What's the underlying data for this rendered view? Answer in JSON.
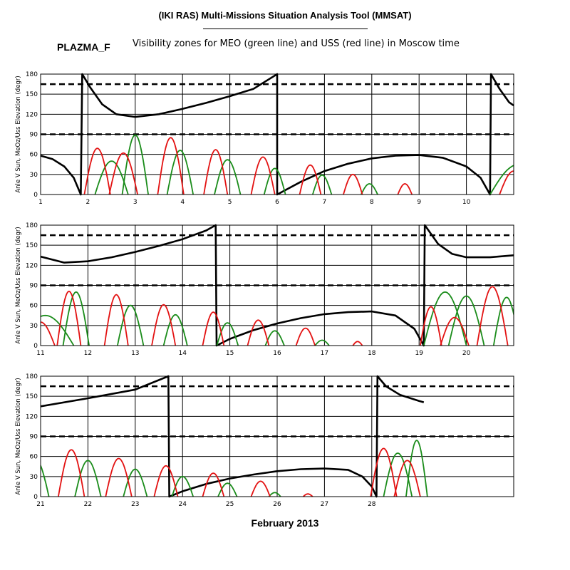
{
  "header": {
    "title": "(IKI RAS) Multi-Missions Situation Analysis Tool (MMSAT)",
    "program": "PLAZMA_F",
    "subtitle": "Visibility zones for MEO (green line) and USS (red line) in Moscow time",
    "footer": "February 2013"
  },
  "colors": {
    "meo": "#1a8c1a",
    "uss": "#e31212",
    "sun_angle": "#000000",
    "grid": "#000000"
  },
  "chart_data": [
    {
      "type": "line",
      "ylabel": "Anle V Sun, MeOz/Uss Elevation (degr)",
      "xlim": [
        1,
        11
      ],
      "ylim": [
        0,
        180
      ],
      "xticks": [
        1,
        2,
        3,
        4,
        5,
        6,
        7,
        8,
        9,
        10
      ],
      "yticks": [
        0,
        30,
        60,
        90,
        120,
        150,
        180
      ],
      "reference_lines": [
        90,
        165
      ],
      "series": [
        {
          "key": "sun",
          "values": [
            [
              1,
              58
            ],
            [
              1.25,
              53
            ],
            [
              1.5,
              42
            ],
            [
              1.7,
              25
            ],
            [
              1.85,
              0
            ],
            [
              1.88,
              180
            ],
            [
              2.05,
              160
            ],
            [
              2.3,
              135
            ],
            [
              2.6,
              120
            ],
            [
              3.0,
              116
            ],
            [
              3.5,
              120
            ],
            [
              4.0,
              128
            ],
            [
              4.5,
              137
            ],
            [
              5.0,
              147
            ],
            [
              5.5,
              158
            ],
            [
              6.0,
              180
            ],
            [
              6.0,
              0
            ],
            [
              6.5,
              19
            ],
            [
              7.0,
              35
            ],
            [
              7.5,
              46
            ],
            [
              8.0,
              54
            ],
            [
              8.5,
              58
            ],
            [
              9.0,
              59
            ],
            [
              9.5,
              55
            ],
            [
              10.0,
              42
            ],
            [
              10.3,
              25
            ],
            [
              10.5,
              0
            ],
            [
              10.52,
              180
            ],
            [
              10.7,
              158
            ],
            [
              10.9,
              138
            ],
            [
              11,
              133
            ]
          ]
        },
        {
          "key": "meo",
          "peaks": [
            [
              2.5,
              50,
              0.7
            ],
            [
              3.0,
              89,
              0.55
            ],
            [
              3.95,
              66,
              0.55
            ],
            [
              4.95,
              52,
              0.55
            ],
            [
              5.95,
              39,
              0.45
            ],
            [
              6.95,
              29,
              0.4
            ],
            [
              7.95,
              16,
              0.35
            ],
            [
              11.1,
              45,
              1.2
            ]
          ]
        },
        {
          "key": "uss",
          "peaks": [
            [
              2.2,
              69,
              0.55
            ],
            [
              2.75,
              62,
              0.6
            ],
            [
              3.75,
              85,
              0.55
            ],
            [
              4.7,
              67,
              0.5
            ],
            [
              5.7,
              56,
              0.5
            ],
            [
              6.7,
              44,
              0.45
            ],
            [
              7.6,
              30,
              0.4
            ],
            [
              8.7,
              16,
              0.3
            ],
            [
              11.0,
              35,
              0.6
            ]
          ]
        }
      ]
    },
    {
      "type": "line",
      "ylabel": "Anle V Sun, MeOz/Uss Elevation (degr)",
      "xlim": [
        11,
        21
      ],
      "ylim": [
        0,
        180
      ],
      "xticks": [
        11,
        12,
        13,
        14,
        15,
        16,
        17,
        18,
        19,
        20
      ],
      "yticks": [
        0,
        30,
        60,
        90,
        120,
        150,
        180
      ],
      "reference_lines": [
        90,
        165
      ],
      "series": [
        {
          "key": "sun",
          "values": [
            [
              11,
              133
            ],
            [
              11.5,
              124
            ],
            [
              12.0,
              126
            ],
            [
              12.5,
              132
            ],
            [
              13.0,
              140
            ],
            [
              13.5,
              149
            ],
            [
              14.0,
              159
            ],
            [
              14.5,
              172
            ],
            [
              14.7,
              180
            ],
            [
              14.72,
              0
            ],
            [
              15.0,
              10
            ],
            [
              15.5,
              23
            ],
            [
              16.0,
              33
            ],
            [
              16.5,
              41
            ],
            [
              17.0,
              47
            ],
            [
              17.5,
              50
            ],
            [
              18.0,
              51
            ],
            [
              18.5,
              45
            ],
            [
              18.9,
              25
            ],
            [
              19.1,
              0
            ],
            [
              19.12,
              180
            ],
            [
              19.4,
              152
            ],
            [
              19.7,
              137
            ],
            [
              20.0,
              132
            ],
            [
              20.5,
              132
            ],
            [
              21,
              135
            ]
          ]
        },
        {
          "key": "meo",
          "peaks": [
            [
              11.1,
              45,
              1.2
            ],
            [
              11.75,
              80,
              0.55
            ],
            [
              12.9,
              60,
              0.55
            ],
            [
              13.85,
              46,
              0.5
            ],
            [
              14.95,
              34,
              0.45
            ],
            [
              15.95,
              22,
              0.4
            ],
            [
              16.95,
              8,
              0.3
            ],
            [
              19.55,
              80,
              0.9
            ],
            [
              20.0,
              74,
              0.75
            ],
            [
              20.85,
              72,
              0.55
            ]
          ]
        },
        {
          "key": "uss",
          "peaks": [
            [
              11.0,
              35,
              0.6
            ],
            [
              11.6,
              81,
              0.5
            ],
            [
              12.6,
              76,
              0.5
            ],
            [
              13.6,
              61,
              0.5
            ],
            [
              14.65,
              50,
              0.45
            ],
            [
              15.6,
              38,
              0.45
            ],
            [
              16.6,
              26,
              0.4
            ],
            [
              17.7,
              6,
              0.2
            ],
            [
              19.25,
              58,
              0.45
            ],
            [
              19.75,
              42,
              0.6
            ],
            [
              20.55,
              88,
              0.65
            ]
          ]
        }
      ]
    },
    {
      "type": "line",
      "ylabel": "Anle V Sun, MeOz/Uss Elevation (degr)",
      "xlim": [
        21,
        31
      ],
      "ylim": [
        0,
        180
      ],
      "xticks": [
        21,
        22,
        23,
        24,
        25,
        26,
        27,
        28
      ],
      "yticks": [
        0,
        30,
        60,
        90,
        120,
        150,
        180
      ],
      "reference_lines": [
        90,
        165
      ],
      "series": [
        {
          "key": "sun",
          "values": [
            [
              21,
              135
            ],
            [
              22,
              147
            ],
            [
              23,
              160
            ],
            [
              23.7,
              180
            ],
            [
              23.72,
              0
            ],
            [
              24.0,
              8
            ],
            [
              24.5,
              19
            ],
            [
              25.0,
              27
            ],
            [
              25.5,
              33
            ],
            [
              26.0,
              38
            ],
            [
              26.5,
              41
            ],
            [
              27.0,
              42
            ],
            [
              27.5,
              40
            ],
            [
              27.8,
              30
            ],
            [
              28.0,
              15
            ],
            [
              28.1,
              0
            ],
            [
              28.12,
              180
            ],
            [
              28.3,
              165
            ],
            [
              28.6,
              152
            ],
            [
              29.0,
              143
            ],
            [
              29.1,
              141
            ]
          ]
        },
        {
          "key": "meo",
          "peaks": [
            [
              20.9,
              55,
              0.55
            ],
            [
              22.0,
              54,
              0.55
            ],
            [
              23.0,
              41,
              0.5
            ],
            [
              24.0,
              30,
              0.45
            ],
            [
              24.95,
              20,
              0.4
            ],
            [
              25.95,
              6,
              0.25
            ],
            [
              28.55,
              65,
              0.6
            ],
            [
              28.95,
              84,
              0.45
            ]
          ]
        },
        {
          "key": "uss",
          "peaks": [
            [
              21.65,
              70,
              0.55
            ],
            [
              22.65,
              57,
              0.55
            ],
            [
              23.65,
              46,
              0.5
            ],
            [
              24.65,
              35,
              0.45
            ],
            [
              25.65,
              23,
              0.4
            ],
            [
              26.65,
              4,
              0.2
            ],
            [
              28.25,
              72,
              0.55
            ],
            [
              28.75,
              54,
              0.55
            ]
          ]
        }
      ]
    }
  ]
}
